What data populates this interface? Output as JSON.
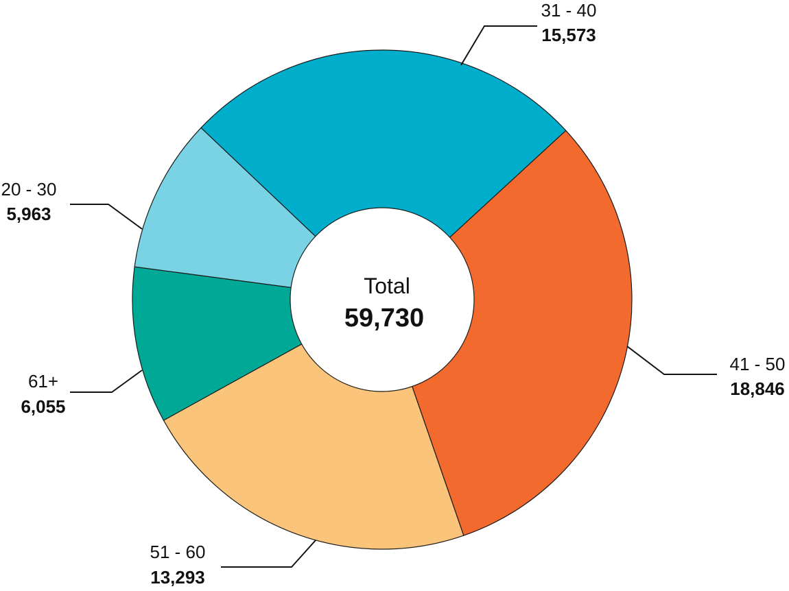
{
  "center": {
    "title": "Total",
    "total": "59,730"
  },
  "chart_data": {
    "type": "pie",
    "donut": true,
    "categories": [
      "31 - 40",
      "41 - 50",
      "51 - 60",
      "61+",
      "20 - 30"
    ],
    "values": [
      15573,
      18846,
      13293,
      6055,
      5963
    ],
    "value_labels": [
      "15,573",
      "18,846",
      "13,293",
      "6,055",
      "5,963"
    ],
    "colors": [
      "#00AECB",
      "#F26A2E",
      "#FAC57A",
      "#00A896",
      "#7AD3E4"
    ],
    "total": 59730,
    "legend": "none"
  }
}
